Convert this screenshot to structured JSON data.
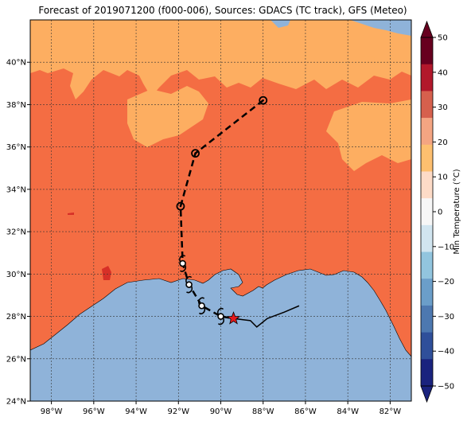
{
  "title": "Forecast of 2019071200 (f000-006), Sources: GDACS (TC track), GFS (Meteo)",
  "colorbar": {
    "label": "Min Temperature (°C)",
    "ticks": [
      "50",
      "40",
      "30",
      "20",
      "10",
      "0",
      "−10",
      "−20",
      "−30",
      "−40",
      "−50"
    ],
    "bands": [
      "#67001f",
      "#b2182b",
      "#d6604d",
      "#f4a582",
      "#fdbf6f",
      "#fddbc7",
      "#f7f7f7",
      "#d1e5f0",
      "#92c5de",
      "#6b9ec9",
      "#4d78b0",
      "#2f4f9a",
      "#1a237e"
    ]
  },
  "axes": {
    "x_ticks": [
      "98°W",
      "96°W",
      "94°W",
      "92°W",
      "90°W",
      "88°W",
      "86°W",
      "84°W",
      "82°W"
    ],
    "y_ticks": [
      "40°N",
      "38°N",
      "36°N",
      "34°N",
      "32°N",
      "30°N",
      "28°N",
      "26°N",
      "24°N"
    ]
  },
  "map_data": {
    "extent_lon": [
      -99,
      -81
    ],
    "extent_lat": [
      24,
      42
    ],
    "colors": {
      "land_warm": "#f46d43",
      "land_mild": "#fdae61",
      "ocean": "#8fb3d9",
      "deep_red": "#d73027",
      "track": "#000000",
      "star": "#e31a1c"
    },
    "track_points": [
      {
        "lon": -88.0,
        "lat": 38.2,
        "symbol": "low"
      },
      {
        "lon": -91.2,
        "lat": 35.7,
        "symbol": "low"
      },
      {
        "lon": -91.9,
        "lat": 33.2,
        "symbol": "low"
      },
      {
        "lon": -91.8,
        "lat": 30.5,
        "symbol": "hurricane"
      },
      {
        "lon": -91.5,
        "lat": 29.5,
        "symbol": "hurricane"
      },
      {
        "lon": -90.9,
        "lat": 28.5,
        "symbol": "hurricane"
      },
      {
        "lon": -90.0,
        "lat": 28.0,
        "symbol": "hurricane"
      },
      {
        "lon": -89.4,
        "lat": 27.9,
        "symbol": "star"
      }
    ],
    "past_track": [
      [
        -89.4,
        27.9
      ],
      [
        -88.6,
        27.8
      ],
      [
        -88.3,
        27.5
      ],
      [
        -87.8,
        27.9
      ],
      [
        -87.0,
        28.2
      ],
      [
        -86.3,
        28.5
      ]
    ]
  }
}
